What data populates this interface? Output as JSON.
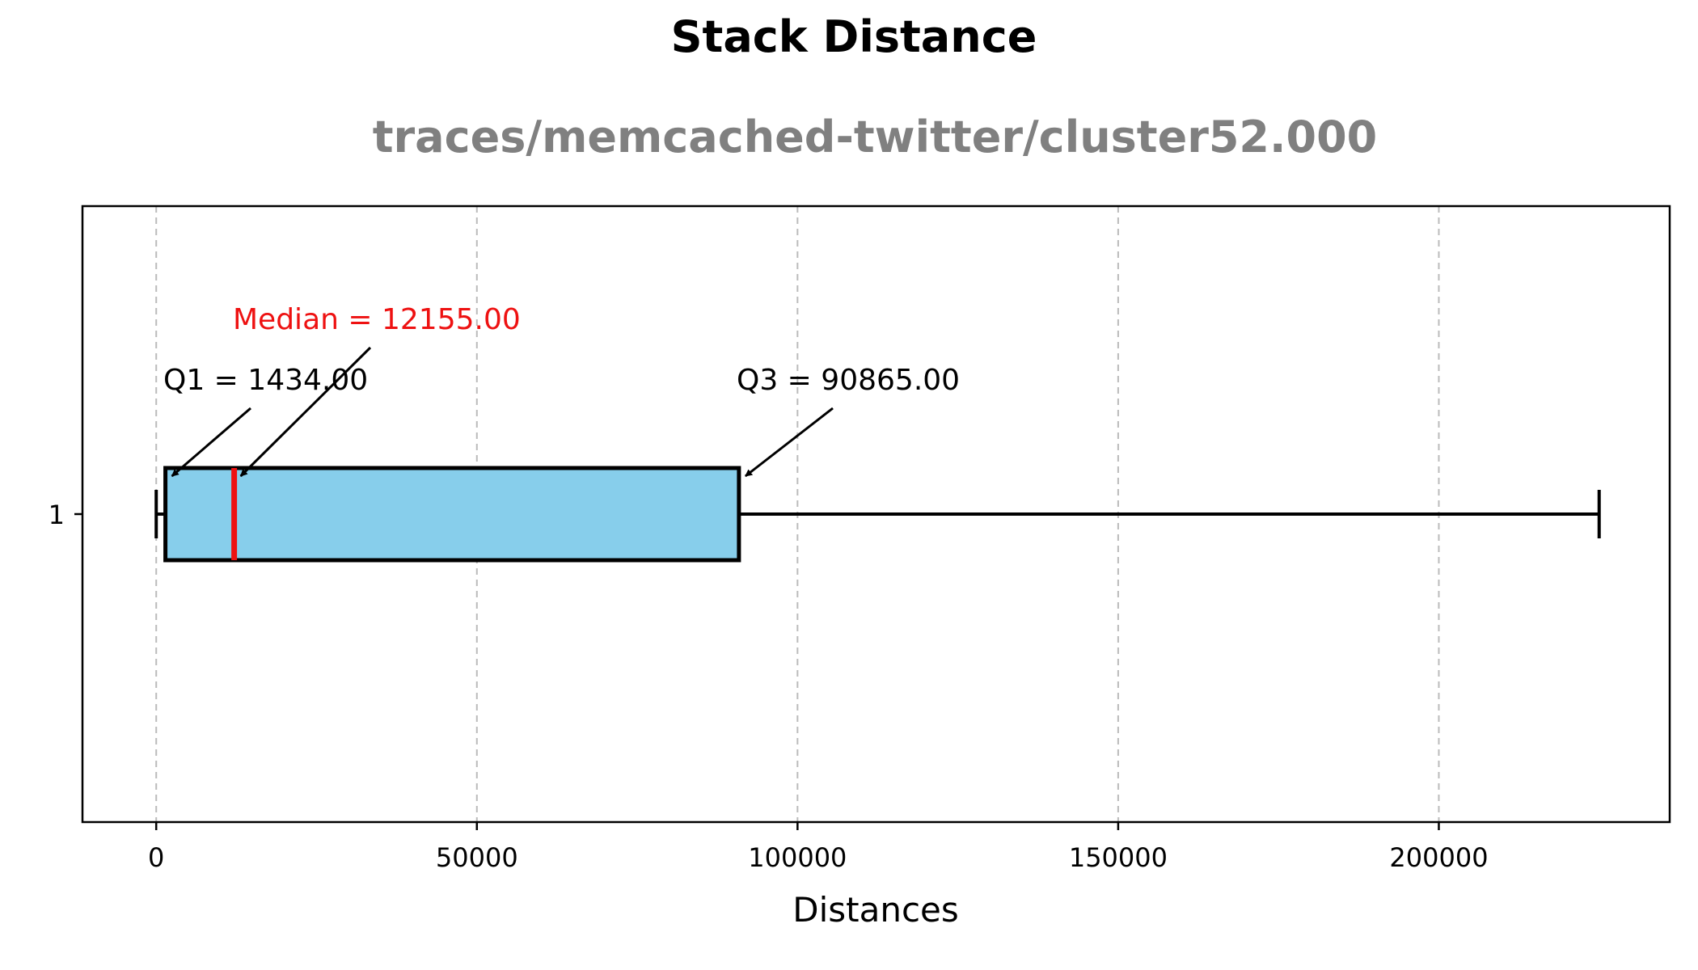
{
  "chart_data": {
    "type": "boxplot",
    "title": "Stack Distance",
    "subtitle": "traces/memcached-twitter/cluster52.000",
    "xlabel": "Distances",
    "ylabel": "",
    "orientation": "horizontal",
    "xlim": [
      -11500,
      236000
    ],
    "xticks": [
      0,
      50000,
      100000,
      150000,
      200000
    ],
    "xtick_labels": [
      "0",
      "50000",
      "100000",
      "150000",
      "200000"
    ],
    "ytick_labels": [
      "1"
    ],
    "grid": "x-dashed",
    "box": {
      "category": "1",
      "whisker_low": 0,
      "q1": 1434,
      "median": 12155,
      "q3": 90865,
      "whisker_high": 225000
    },
    "annotations": {
      "q1": "Q1 = 1434.00",
      "median": "Median = 12155.00",
      "q3": "Q3 = 90865.00"
    },
    "colors": {
      "box_fill": "#87CEEB",
      "median_line": "#EE1111",
      "subtitle": "#808080",
      "grid": "#bbbbbb"
    }
  }
}
